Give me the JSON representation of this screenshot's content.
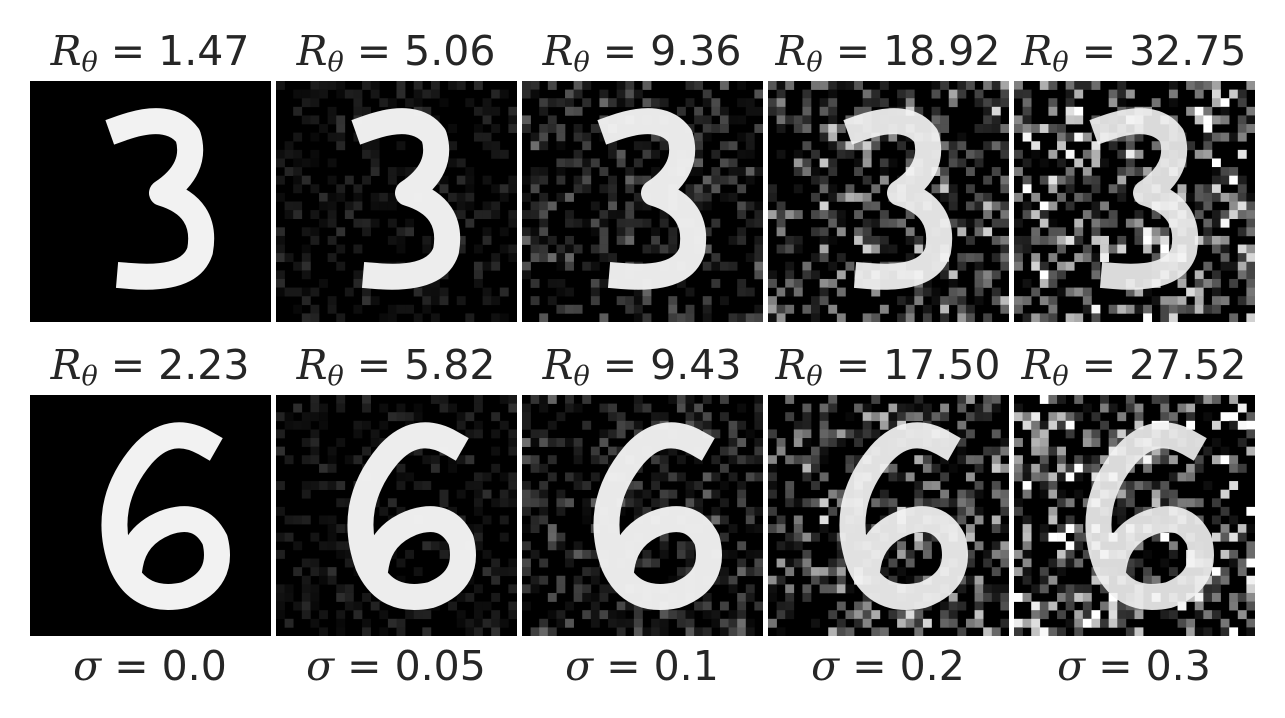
{
  "figure": {
    "rows": [
      {
        "digit": "3",
        "panels": [
          {
            "r_value": "1.47",
            "noise": 0.0
          },
          {
            "r_value": "5.06",
            "noise": 0.05
          },
          {
            "r_value": "9.36",
            "noise": 0.1
          },
          {
            "r_value": "18.92",
            "noise": 0.2
          },
          {
            "r_value": "32.75",
            "noise": 0.3
          }
        ]
      },
      {
        "digit": "6",
        "panels": [
          {
            "r_value": "2.23",
            "noise": 0.0
          },
          {
            "r_value": "5.82",
            "noise": 0.05
          },
          {
            "r_value": "9.43",
            "noise": 0.1
          },
          {
            "r_value": "17.50",
            "noise": 0.2
          },
          {
            "r_value": "27.52",
            "noise": 0.3
          }
        ]
      }
    ],
    "r_symbol": "R",
    "r_subscript": "θ",
    "sigma_symbol": "σ",
    "equals": " = ",
    "sigma_labels": [
      "0.0",
      "0.05",
      "0.1",
      "0.2",
      "0.3"
    ]
  }
}
